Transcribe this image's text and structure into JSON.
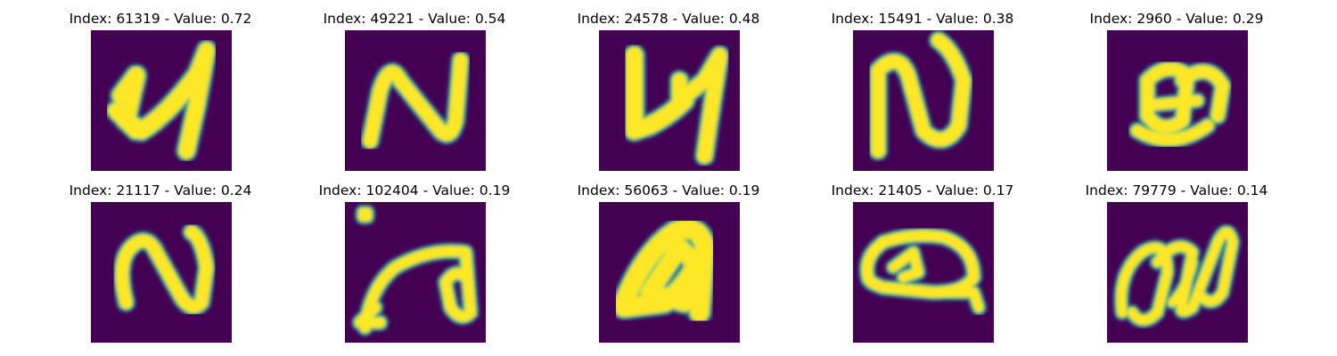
{
  "colormap": {
    "background": "#440154",
    "edge_dark": "#3b528b",
    "edge_mid": "#21918c",
    "edge_light": "#5ec962",
    "foreground": "#fde725"
  },
  "panels": [
    {
      "title": "Index: 61319 - Value: 0.72"
    },
    {
      "title": "Index: 49221 - Value: 0.54"
    },
    {
      "title": "Index: 24578 - Value: 0.48"
    },
    {
      "title": "Index: 15491 - Value: 0.38"
    },
    {
      "title": "Index: 2960 - Value: 0.29"
    },
    {
      "title": "Index: 21117 - Value: 0.24"
    },
    {
      "title": "Index: 102404 - Value: 0.19"
    },
    {
      "title": "Index: 56063 - Value: 0.19"
    },
    {
      "title": "Index: 21405 - Value: 0.17"
    },
    {
      "title": "Index: 79779 - Value: 0.14"
    }
  ]
}
